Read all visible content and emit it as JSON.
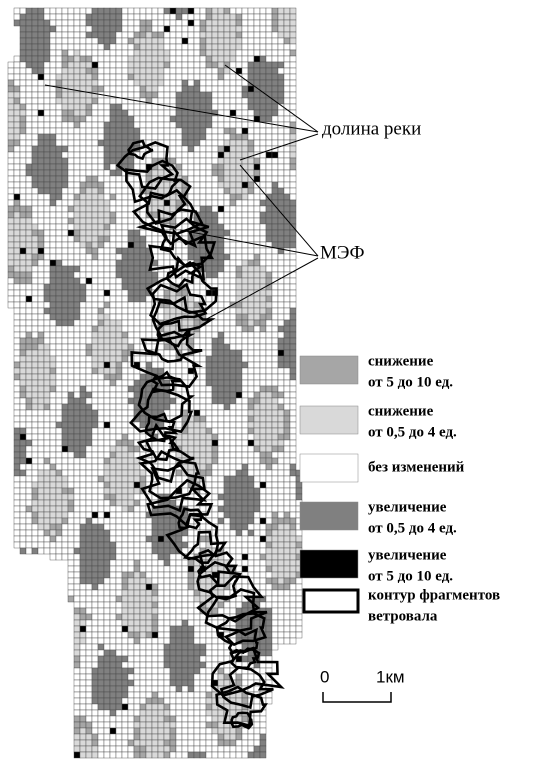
{
  "annotations": {
    "river": "долина реки",
    "mef": "МЭФ"
  },
  "legend": {
    "items": [
      {
        "lines": [
          "снижение",
          "от 5 до 10 ед."
        ],
        "color": "#a6a6a6"
      },
      {
        "lines": [
          "снижение",
          "от 0,5 до 4 ед."
        ],
        "color": "#d9d9d9"
      },
      {
        "lines": [
          "без изменений"
        ],
        "color": "#ffffff"
      },
      {
        "lines": [
          "увеличение",
          "от 0,5 до 4 ед."
        ],
        "color": "#808080"
      },
      {
        "lines": [
          "увеличение",
          "от 5 до 10 ед."
        ],
        "color": "#000000"
      },
      {
        "lines": [
          "контур фрагментов",
          "ветровала"
        ],
        "color": "#000000"
      }
    ]
  },
  "scale": {
    "start": "0",
    "end": "1км"
  }
}
